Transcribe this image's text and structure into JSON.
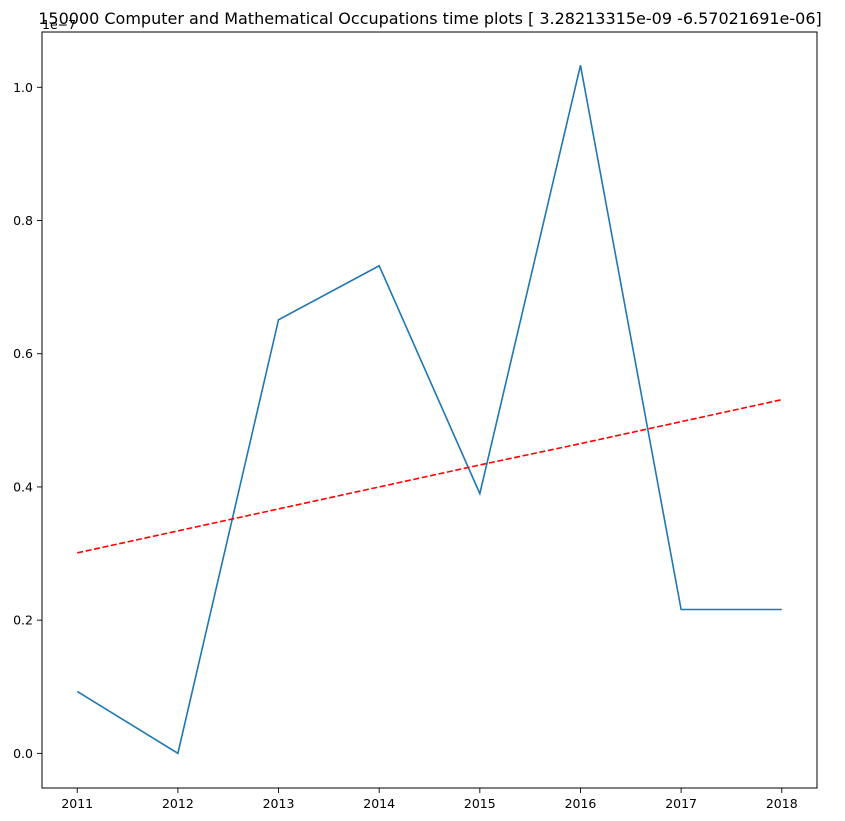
{
  "chart_data": {
    "type": "line",
    "title": "150000 Computer and Mathematical Occupations time plots [ 3.28213315e-09 -6.57021691e-06]",
    "xlabel": "",
    "ylabel": "",
    "y_offset_label": "1e−7",
    "x": [
      2011,
      2012,
      2013,
      2014,
      2015,
      2016,
      2017,
      2018
    ],
    "x_tick_labels": [
      "2011",
      "2012",
      "2013",
      "2014",
      "2015",
      "2016",
      "2017",
      "2018"
    ],
    "y_ticks": [
      0.0,
      0.2,
      0.4,
      0.6,
      0.8,
      1.0
    ],
    "y_tick_labels": [
      "0.0",
      "0.2",
      "0.4",
      "0.6",
      "0.8",
      "1.0"
    ],
    "xlim": [
      2010.65,
      2018.35
    ],
    "ylim": [
      -0.052,
      1.083
    ],
    "grid": false,
    "series": [
      {
        "style": "solid",
        "color": "#1f77b4",
        "values": [
          0.093,
          0.0,
          0.651,
          0.732,
          0.39,
          1.033,
          0.216,
          0.216
        ]
      },
      {
        "style": "dashed",
        "color": "#ff0000",
        "values": [
          0.301,
          0.334,
          0.367,
          0.4,
          0.433,
          0.465,
          0.498,
          0.531
        ]
      }
    ]
  }
}
